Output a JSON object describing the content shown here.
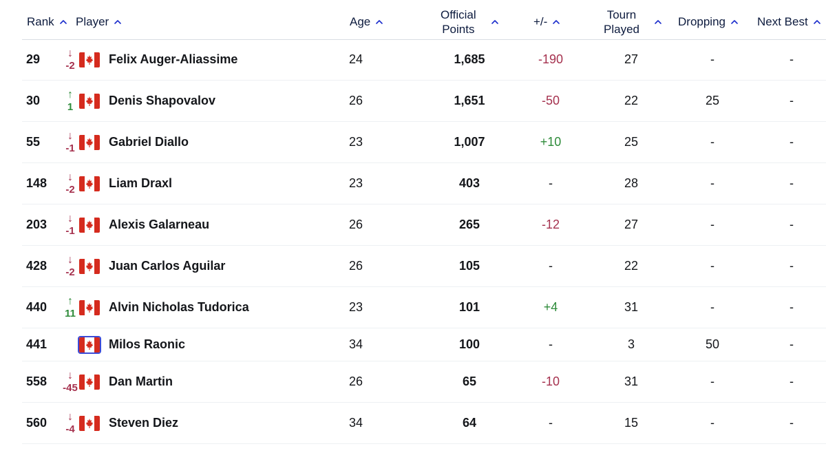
{
  "header": {
    "rank": "Rank",
    "player": "Player",
    "age": "Age",
    "points_line1": "Official",
    "points_line2": "Points",
    "plus_minus": "+/-",
    "tourn_line1": "Tourn",
    "tourn_line2": "Played",
    "dropping": "Dropping",
    "next_best": "Next Best"
  },
  "colors": {
    "header_text": "#0d1b3e",
    "sort_arrow": "#1a2ccc",
    "down": "#a5314e",
    "up": "#2e8b3a"
  },
  "icons": {
    "sort": "chevron-up-icon",
    "move_down": "arrow-down-icon",
    "move_up": "arrow-up-icon",
    "flag": "canada-flag-icon"
  },
  "rows": [
    {
      "rank": "29",
      "dir": "down",
      "arrow": "↓",
      "move": "-2",
      "player": "Felix Auger-Aliassime",
      "age": "24",
      "points": "1,685",
      "pm": "-190",
      "pm_kind": "neg",
      "played": "27",
      "dropping": "-",
      "next_best": "-"
    },
    {
      "rank": "30",
      "dir": "up",
      "arrow": "↑",
      "move": "1",
      "player": "Denis Shapovalov",
      "age": "26",
      "points": "1,651",
      "pm": "-50",
      "pm_kind": "neg",
      "played": "22",
      "dropping": "25",
      "next_best": "-"
    },
    {
      "rank": "55",
      "dir": "down",
      "arrow": "↓",
      "move": "-1",
      "player": "Gabriel Diallo",
      "age": "23",
      "points": "1,007",
      "pm": "+10",
      "pm_kind": "pos",
      "played": "25",
      "dropping": "-",
      "next_best": "-"
    },
    {
      "rank": "148",
      "dir": "down",
      "arrow": "↓",
      "move": "-2",
      "player": "Liam Draxl",
      "age": "23",
      "points": "403",
      "pm": "-",
      "pm_kind": "neu",
      "played": "28",
      "dropping": "-",
      "next_best": "-"
    },
    {
      "rank": "203",
      "dir": "down",
      "arrow": "↓",
      "move": "-1",
      "player": "Alexis Galarneau",
      "age": "26",
      "points": "265",
      "pm": "-12",
      "pm_kind": "neg",
      "played": "27",
      "dropping": "-",
      "next_best": "-"
    },
    {
      "rank": "428",
      "dir": "down",
      "arrow": "↓",
      "move": "-2",
      "player": "Juan Carlos Aguilar",
      "age": "26",
      "points": "105",
      "pm": "-",
      "pm_kind": "neu",
      "played": "22",
      "dropping": "-",
      "next_best": "-"
    },
    {
      "rank": "440",
      "dir": "up",
      "arrow": "↑",
      "move": "11",
      "player": "Alvin Nicholas Tudorica",
      "age": "23",
      "points": "101",
      "pm": "+4",
      "pm_kind": "pos",
      "played": "31",
      "dropping": "-",
      "next_best": "-"
    },
    {
      "rank": "441",
      "dir": "none",
      "arrow": "",
      "move": "",
      "player": "Milos Raonic",
      "age": "34",
      "points": "100",
      "pm": "-",
      "pm_kind": "neu",
      "played": "3",
      "dropping": "50",
      "next_best": "-"
    },
    {
      "rank": "558",
      "dir": "down",
      "arrow": "↓",
      "move": "-45",
      "player": "Dan Martin",
      "age": "26",
      "points": "65",
      "pm": "-10",
      "pm_kind": "neg",
      "played": "31",
      "dropping": "-",
      "next_best": "-"
    },
    {
      "rank": "560",
      "dir": "down",
      "arrow": "↓",
      "move": "-4",
      "player": "Steven Diez",
      "age": "34",
      "points": "64",
      "pm": "-",
      "pm_kind": "neu",
      "played": "15",
      "dropping": "-",
      "next_best": "-"
    }
  ]
}
